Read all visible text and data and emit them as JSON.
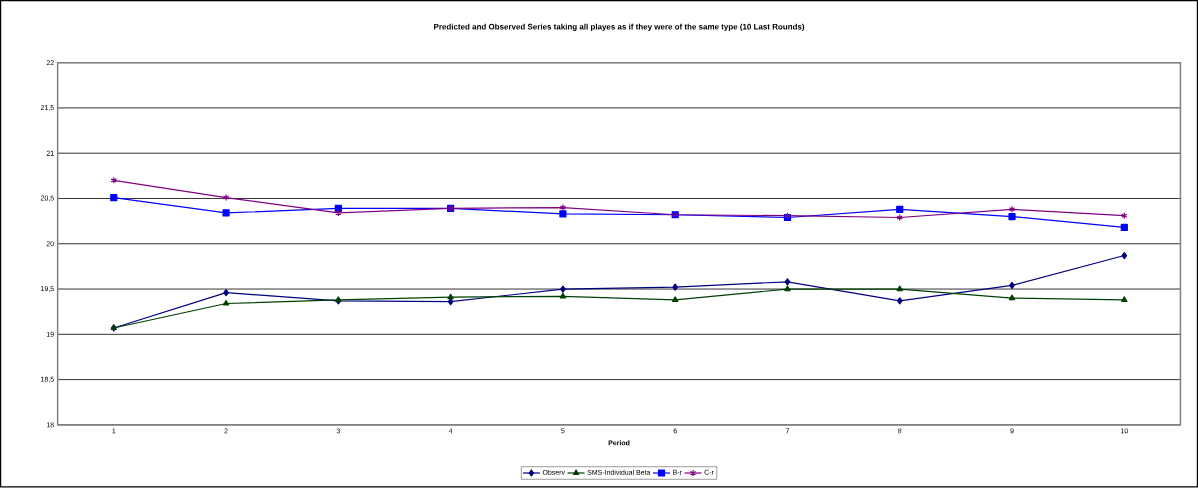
{
  "chart_data": {
    "type": "line",
    "title": "Predicted and Observed Series taking all playes as if they were of the same type (10 Last Rounds)",
    "xlabel": "Period",
    "categories": [
      "1",
      "2",
      "3",
      "4",
      "5",
      "6",
      "7",
      "8",
      "9",
      "10"
    ],
    "series": [
      {
        "name": "Observ",
        "color": "#000080",
        "marker": "diamond",
        "values": [
          19.07,
          19.46,
          19.37,
          19.36,
          19.5,
          19.52,
          19.58,
          19.37,
          19.54,
          19.87
        ]
      },
      {
        "name": "SMS-Individual Beta",
        "color": "#004000",
        "marker": "triangle",
        "values": [
          19.07,
          19.34,
          19.38,
          19.41,
          19.42,
          19.38,
          19.5,
          19.5,
          19.4,
          19.38
        ]
      },
      {
        "name": "B-r",
        "color": "#0000ff",
        "marker": "square",
        "values": [
          20.51,
          20.34,
          20.39,
          20.39,
          20.33,
          20.32,
          20.29,
          20.38,
          20.3,
          20.18
        ]
      },
      {
        "name": "C-r",
        "color": "#800080",
        "marker": "cross",
        "values": [
          20.7,
          20.51,
          20.34,
          20.39,
          20.4,
          20.32,
          20.31,
          20.29,
          20.38,
          20.31
        ]
      }
    ],
    "ylim": [
      18,
      22
    ],
    "yticks": [
      {
        "value": 18,
        "label": "18"
      },
      {
        "value": 18.5,
        "label": "18,5"
      },
      {
        "value": 19,
        "label": "19"
      },
      {
        "value": 19.5,
        "label": "19,5"
      },
      {
        "value": 20,
        "label": "20"
      },
      {
        "value": 20.5,
        "label": "20,5"
      },
      {
        "value": 21,
        "label": "21"
      },
      {
        "value": 21.5,
        "label": "21,5"
      },
      {
        "value": 22,
        "label": "22"
      }
    ],
    "grid": "y",
    "legend": "bottom",
    "line_style": "solid"
  }
}
